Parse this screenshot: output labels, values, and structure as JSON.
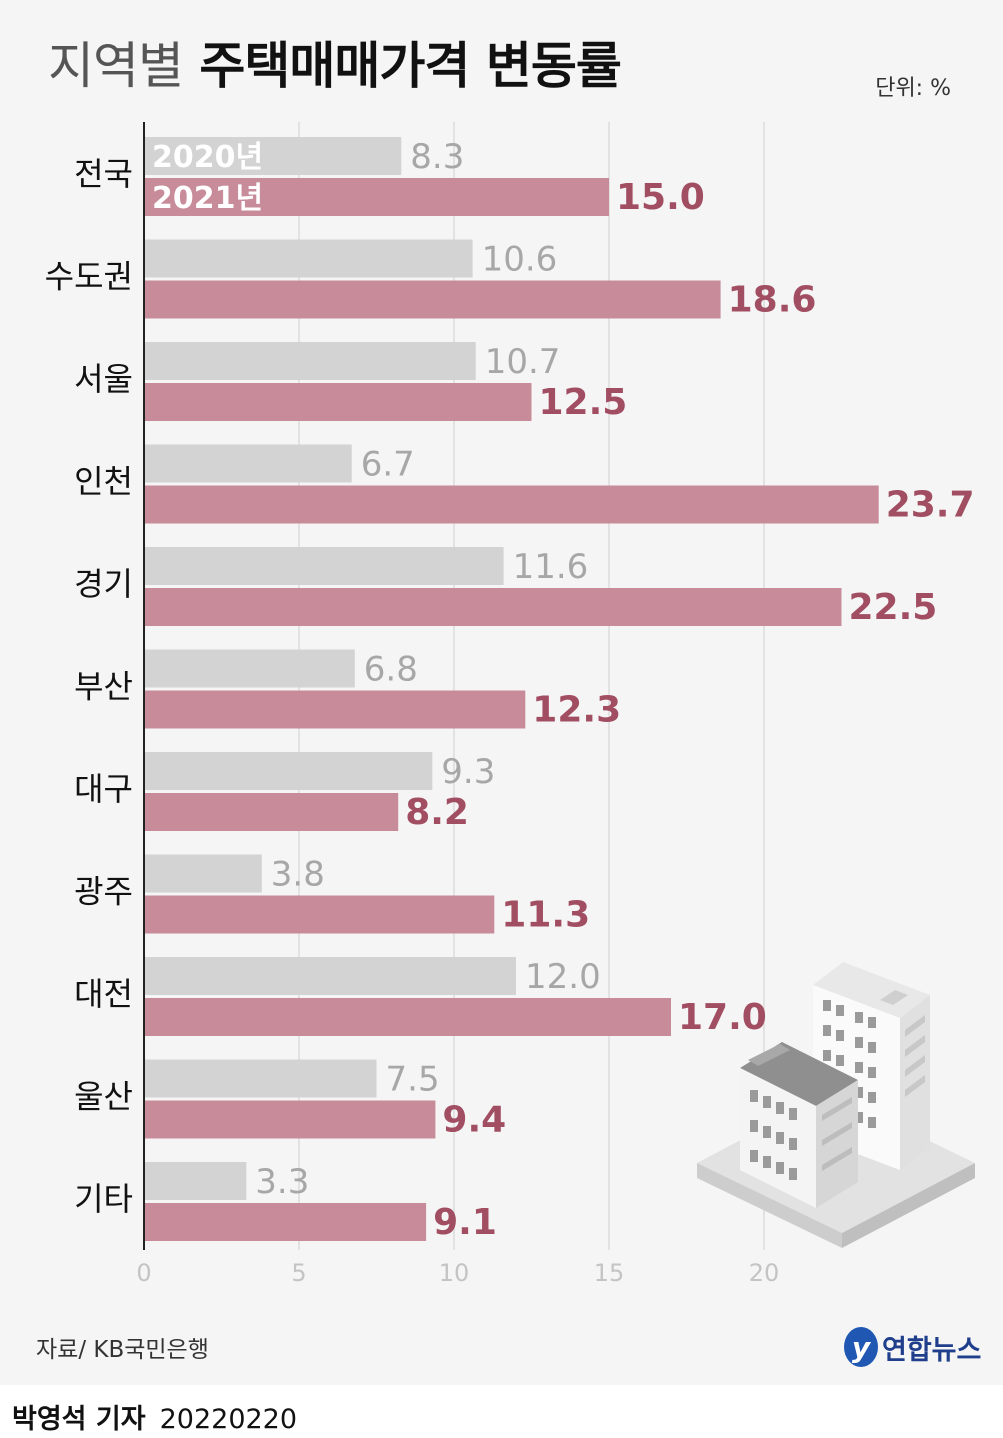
{
  "header": {
    "title_light": "지역별",
    "title_bold": "주택매매가격 변동률",
    "unit": "단위: %"
  },
  "chart_data": {
    "type": "bar",
    "orientation": "horizontal",
    "categories": [
      "전국",
      "수도권",
      "서울",
      "인천",
      "경기",
      "부산",
      "대구",
      "광주",
      "대전",
      "울산",
      "기타"
    ],
    "series": [
      {
        "name": "2020년",
        "values": [
          8.3,
          10.6,
          10.7,
          6.7,
          11.6,
          6.8,
          9.3,
          3.8,
          12.0,
          7.5,
          3.3
        ],
        "color": "#d3d3d3"
      },
      {
        "name": "2021년",
        "values": [
          15.0,
          18.6,
          12.5,
          23.7,
          22.5,
          12.3,
          8.2,
          11.3,
          17.0,
          9.4,
          9.1
        ],
        "color": "#c78b99"
      }
    ],
    "xticks": [
      0,
      5,
      10,
      15,
      20
    ],
    "xlim": [
      0,
      25
    ],
    "grid": true,
    "legend": "inside-first-bars",
    "value_label_colors": {
      "2020년": "#a7a7a7",
      "2021년": "#a24e62"
    }
  },
  "footer": {
    "source": "자료/ KB국민은행",
    "logo_text": "연합뉴스",
    "author": "박영석 기자",
    "date": "20220220"
  },
  "icons": [
    "building-illustration",
    "yonhap-logo-icon"
  ]
}
